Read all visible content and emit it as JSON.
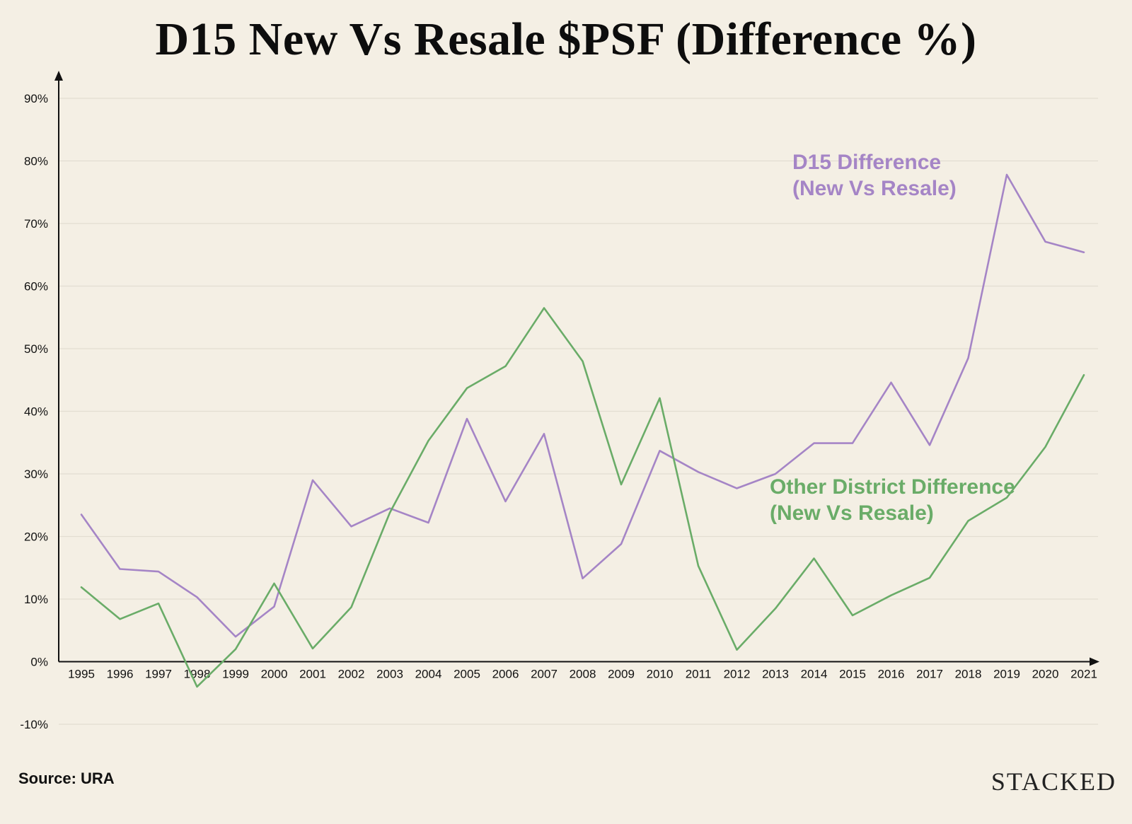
{
  "chart_data": {
    "type": "line",
    "title": "D15 New Vs Resale $PSF (Difference %)",
    "xlabel": "",
    "ylabel": "",
    "ylim": [
      -10,
      90
    ],
    "yticks": [
      -10,
      0,
      10,
      20,
      30,
      40,
      50,
      60,
      70,
      80,
      90
    ],
    "ytick_labels": [
      "-10%",
      "0%",
      "10%",
      "20%",
      "30%",
      "40%",
      "50%",
      "60%",
      "70%",
      "80%",
      "90%"
    ],
    "grid": true,
    "legend": "inline",
    "categories": [
      "1995",
      "1996",
      "1997",
      "1998",
      "1999",
      "2000",
      "2001",
      "2002",
      "2003",
      "2004",
      "2005",
      "2006",
      "2007",
      "2008",
      "2009",
      "2010",
      "2011",
      "2012",
      "2013",
      "2014",
      "2015",
      "2016",
      "2017",
      "2018",
      "2019",
      "2020",
      "2021"
    ],
    "series": [
      {
        "name": "D15 Difference (New Vs Resale)",
        "label_lines": [
          "D15 Difference",
          "(New Vs Resale)"
        ],
        "color": "#a585c6",
        "values": [
          23.5,
          14.8,
          14.4,
          10.3,
          4.0,
          8.8,
          29.0,
          21.6,
          24.5,
          22.2,
          38.8,
          25.6,
          36.4,
          13.3,
          18.8,
          33.7,
          30.3,
          27.7,
          30.0,
          34.9,
          34.9,
          44.6,
          34.6,
          48.5,
          77.8,
          67.1,
          65.4
        ]
      },
      {
        "name": "Other District Difference (New Vs Resale)",
        "label_lines": [
          "Other District Difference",
          "(New Vs Resale)"
        ],
        "color": "#6aac68",
        "values": [
          11.9,
          6.8,
          9.3,
          -4.0,
          2.0,
          12.5,
          2.1,
          8.7,
          23.8,
          35.3,
          43.7,
          47.2,
          56.5,
          48.0,
          28.3,
          42.1,
          15.3,
          1.9,
          8.5,
          16.5,
          7.4,
          10.6,
          13.4,
          22.5,
          26.2,
          34.3,
          45.8
        ]
      }
    ]
  },
  "footer": {
    "source": "Source: URA",
    "brand": "STACKED"
  }
}
